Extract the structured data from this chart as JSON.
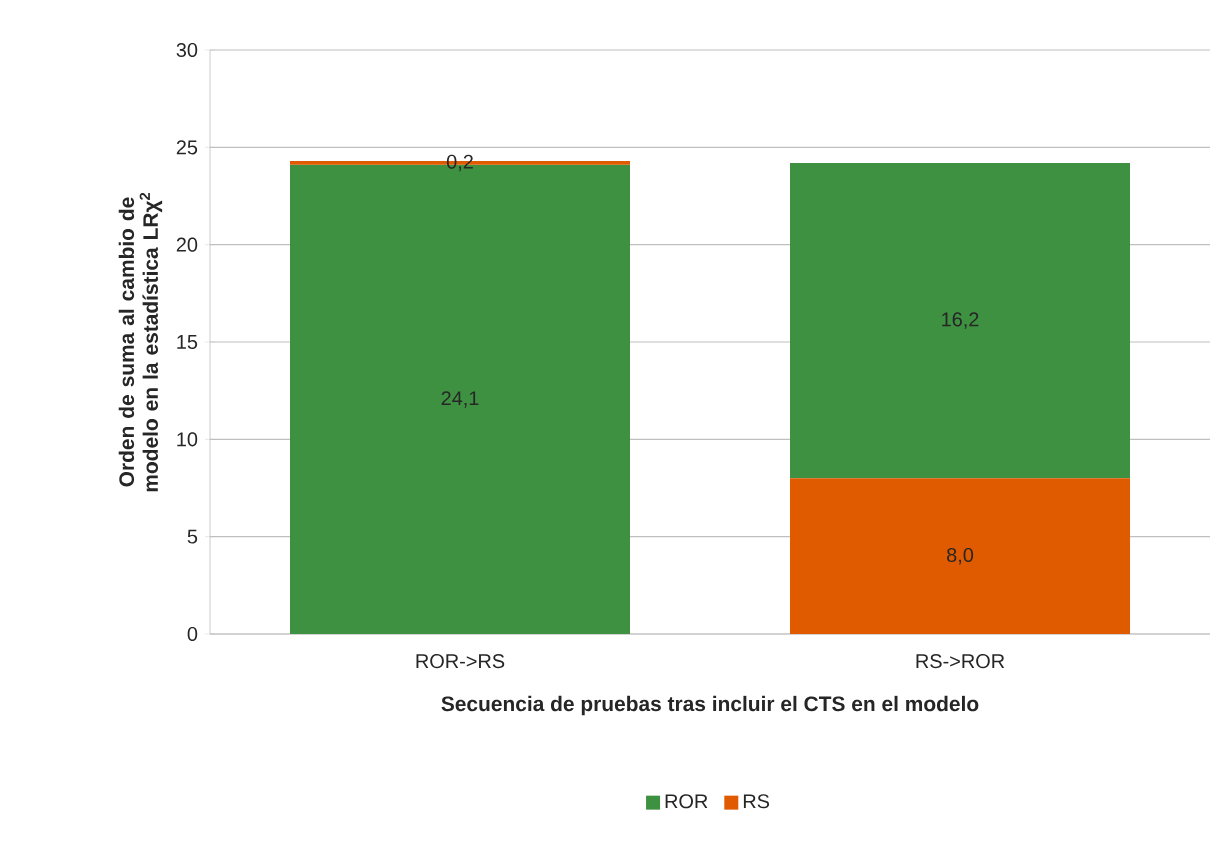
{
  "chart_data": {
    "type": "bar",
    "xlabel": "Secuencia de pruebas tras incluir el CTS en el modelo",
    "ylabel": "Orden de suma al cambio de modelo en la estadística LRχ$^{2}$",
    "categories": [
      "ROR->RS",
      "RS->ROR"
    ],
    "ylim": [
      0,
      30
    ],
    "yticks": [
      0,
      5,
      10,
      15,
      20,
      25,
      30
    ],
    "grid": "y",
    "legend": "bottom",
    "series": [
      {
        "name": "ROR",
        "color": "#3f9142",
        "values": [
          24.1,
          16.2
        ],
        "base": [
          0,
          8.0
        ],
        "value_labels": [
          "24,1",
          "16,2"
        ]
      },
      {
        "name": "RS",
        "color": "#e05a00",
        "values": [
          0.2,
          8.0
        ],
        "base": [
          24.1,
          0
        ],
        "value_labels": [
          "0,2",
          "8,0"
        ]
      }
    ]
  }
}
